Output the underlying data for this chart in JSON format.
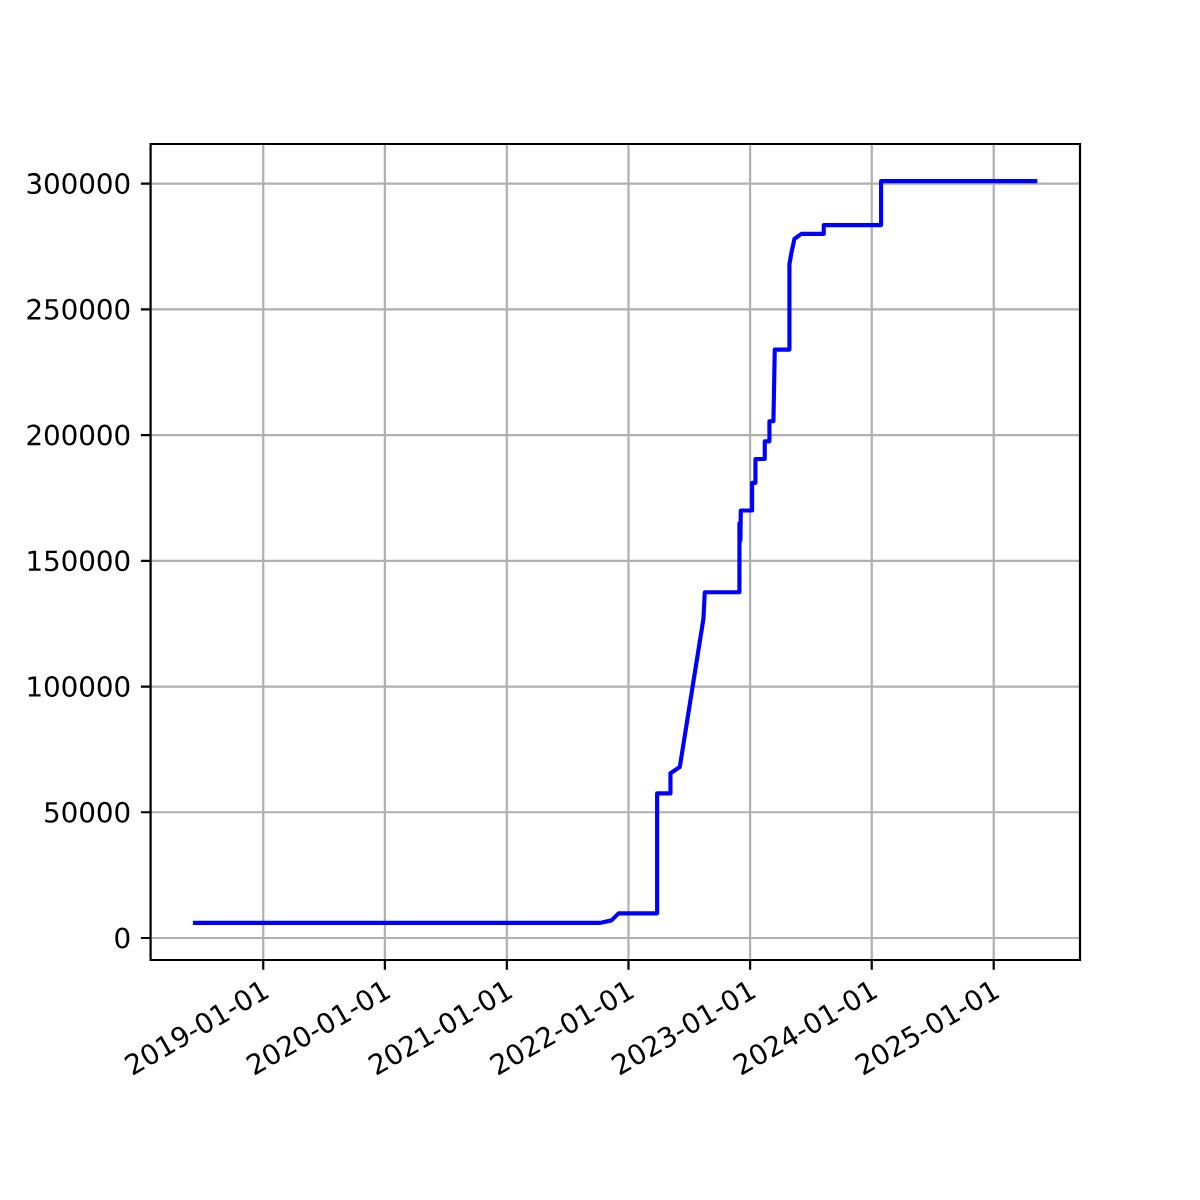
{
  "chart_data": {
    "type": "line",
    "x": [
      "2018-06-04",
      "2021-10-07",
      "2021-11-11",
      "2021-12-02",
      "2022-03-28",
      "2022-03-28",
      "2022-05-07",
      "2022-05-07",
      "2022-06-04",
      "2022-08-14",
      "2022-08-18",
      "2022-11-30",
      "2022-11-30",
      "2022-12-03",
      "2022-12-04",
      "2023-01-07",
      "2023-01-07",
      "2023-01-17",
      "2023-01-17",
      "2023-02-14",
      "2023-02-14",
      "2023-02-28",
      "2023-02-28",
      "2023-03-12",
      "2023-03-16",
      "2023-04-29",
      "2023-04-29",
      "2023-05-05",
      "2023-05-14",
      "2023-06-04",
      "2023-08-10",
      "2023-08-10",
      "2024-01-29",
      "2024-01-29",
      "2025-05-12"
    ],
    "series": [
      {
        "color": "#0000ff",
        "values": [
          6000,
          6000,
          7000,
          9800,
          9800,
          57500,
          57500,
          65500,
          68000,
          127000,
          137500,
          137500,
          165000,
          158000,
          170000,
          170000,
          181000,
          181000,
          190500,
          190500,
          197500,
          197500,
          205500,
          205500,
          234000,
          234000,
          268000,
          272500,
          278000,
          280000,
          280000,
          283500,
          283500,
          301000,
          301000
        ]
      }
    ],
    "xlim": [
      "2018-01-28",
      "2025-09-17"
    ],
    "xticks": [
      "2019-01-01",
      "2020-01-01",
      "2021-01-01",
      "2022-01-01",
      "2023-01-01",
      "2024-01-01",
      "2025-01-01"
    ],
    "ylim": [
      -8750,
      315750
    ],
    "yticks": [
      0,
      50000,
      100000,
      150000,
      200000,
      250000,
      300000
    ],
    "grid": true
  }
}
